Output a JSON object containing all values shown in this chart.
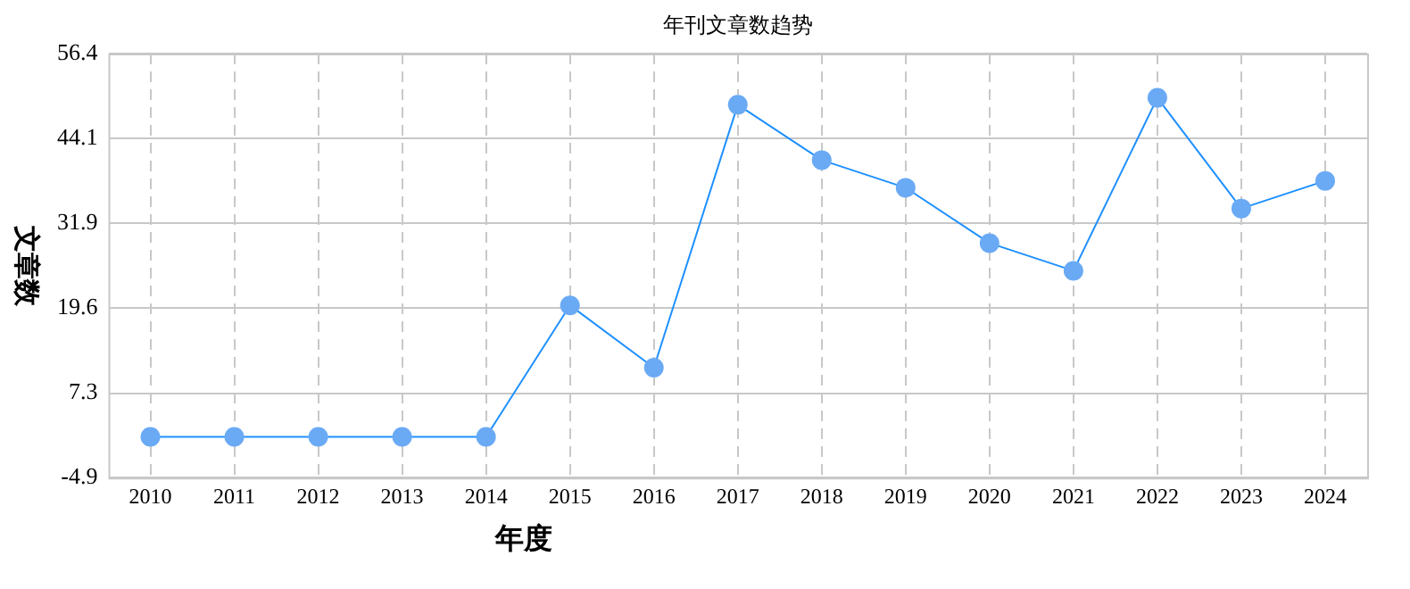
{
  "chart_data": {
    "type": "line",
    "title": "年刊文章数趋势",
    "xlabel": "年度",
    "ylabel": "文章数",
    "categories": [
      "2010",
      "2011",
      "2012",
      "2013",
      "2014",
      "2015",
      "2016",
      "2017",
      "2018",
      "2019",
      "2020",
      "2021",
      "2022",
      "2023",
      "2024"
    ],
    "series": [
      {
        "color": "#1e90ff",
        "values": [
          1,
          1,
          1,
          1,
          1,
          20,
          11,
          49,
          41,
          37,
          29,
          25,
          50,
          34,
          38
        ]
      }
    ],
    "ylim": [
      -4.9,
      56.4
    ],
    "yticks": [
      -4.9,
      7.3,
      19.6,
      31.9,
      44.1,
      56.4
    ],
    "grid": true,
    "marker": "circle",
    "line_style": "solid",
    "legend": false
  }
}
